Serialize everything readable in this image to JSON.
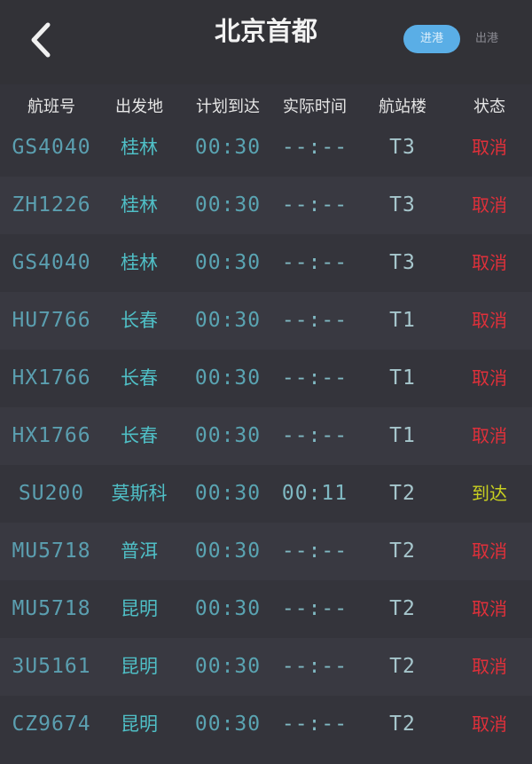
{
  "header": {
    "title": "北京首都",
    "toggle_active": "进港",
    "toggle_inactive": "出港"
  },
  "columns": [
    "航班号",
    "出发地",
    "计划到达",
    "实际时间",
    "航站楼",
    "状态"
  ],
  "status_colors": {
    "取消": "#e0303a",
    "到达": "#c8d020"
  },
  "rows": [
    {
      "flight": "GS4040",
      "origin": "桂林",
      "scheduled": "00:30",
      "actual": "--:--",
      "terminal": "T3",
      "status": "取消"
    },
    {
      "flight": "ZH1226",
      "origin": "桂林",
      "scheduled": "00:30",
      "actual": "--:--",
      "terminal": "T3",
      "status": "取消"
    },
    {
      "flight": "GS4040",
      "origin": "桂林",
      "scheduled": "00:30",
      "actual": "--:--",
      "terminal": "T3",
      "status": "取消"
    },
    {
      "flight": "HU7766",
      "origin": "长春",
      "scheduled": "00:30",
      "actual": "--:--",
      "terminal": "T1",
      "status": "取消"
    },
    {
      "flight": "HX1766",
      "origin": "长春",
      "scheduled": "00:30",
      "actual": "--:--",
      "terminal": "T1",
      "status": "取消"
    },
    {
      "flight": "HX1766",
      "origin": "长春",
      "scheduled": "00:30",
      "actual": "--:--",
      "terminal": "T1",
      "status": "取消"
    },
    {
      "flight": "SU200",
      "origin": "莫斯科",
      "scheduled": "00:30",
      "actual": "00:11",
      "terminal": "T2",
      "status": "到达"
    },
    {
      "flight": "MU5718",
      "origin": "普洱",
      "scheduled": "00:30",
      "actual": "--:--",
      "terminal": "T2",
      "status": "取消"
    },
    {
      "flight": "MU5718",
      "origin": "昆明",
      "scheduled": "00:30",
      "actual": "--:--",
      "terminal": "T2",
      "status": "取消"
    },
    {
      "flight": "3U5161",
      "origin": "昆明",
      "scheduled": "00:30",
      "actual": "--:--",
      "terminal": "T2",
      "status": "取消"
    },
    {
      "flight": "CZ9674",
      "origin": "昆明",
      "scheduled": "00:30",
      "actual": "--:--",
      "terminal": "T2",
      "status": "取消"
    }
  ]
}
